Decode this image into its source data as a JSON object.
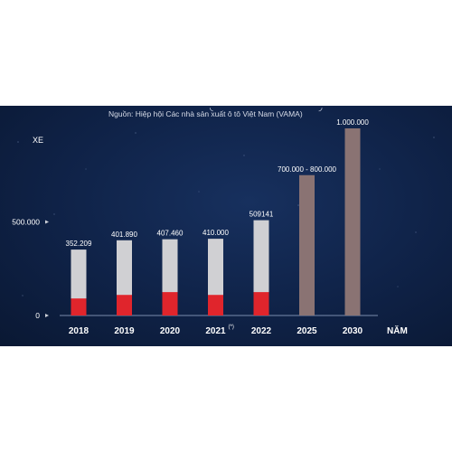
{
  "source": "Nguồn: Hiệp hội Các nhà sản xuất ô tô Việt Nam (VAMA)",
  "chart_data": {
    "type": "bar",
    "ylabel": "XE",
    "xlabel": "NĂM",
    "yticks": [
      "500.000",
      "0"
    ],
    "ylim": [
      0,
      1000000
    ],
    "grid": false,
    "categories": [
      "2018",
      "2019",
      "2020",
      "2021",
      "2022",
      "2025",
      "2030"
    ],
    "category_marks": [
      "",
      "",
      "",
      "(*)",
      "",
      "",
      ""
    ],
    "values": [
      352209,
      401890,
      407460,
      410000,
      509141,
      750000,
      1000000
    ],
    "value_labels": [
      "352.209",
      "401.890",
      "407.460",
      "410.000",
      "509141",
      "700.000 - 800.000",
      "1.000.000"
    ],
    "red_portion_values": [
      91000,
      110000,
      125000,
      110000,
      125000,
      null,
      null
    ],
    "colors": {
      "actual": "#d0d0d3",
      "red_segment": "#e0252c",
      "forecast": "#8a7373",
      "text": "#ffffff",
      "background": "#0f2247"
    }
  }
}
